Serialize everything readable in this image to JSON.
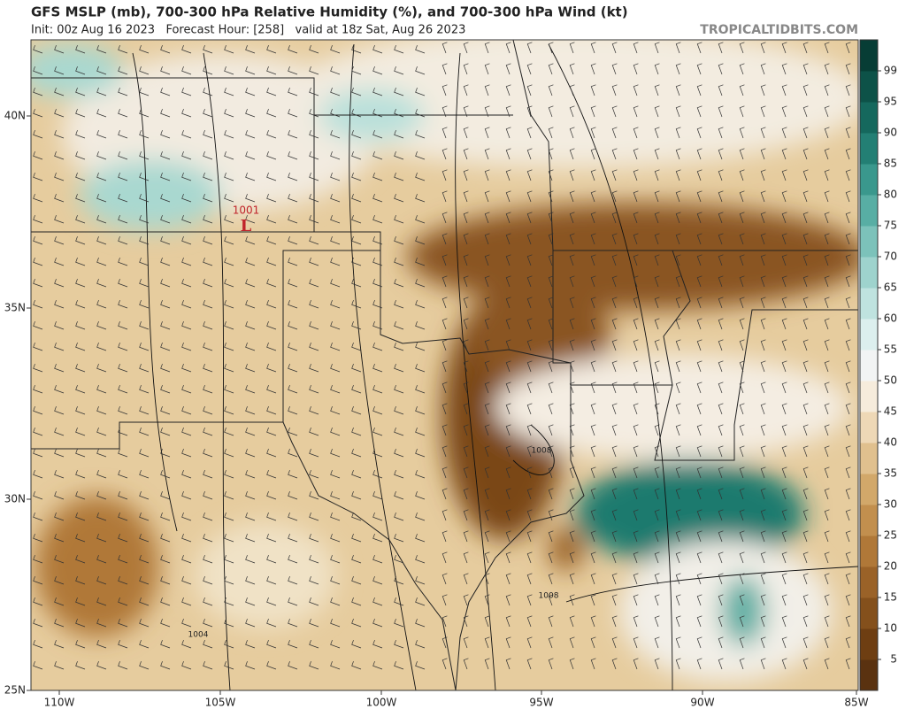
{
  "header": {
    "title": "GFS MSLP (mb), 700-300 hPa Relative Humidity (%), and 700-300 hPa Wind (kt)",
    "subtitle": "Init: 00z Aug 16 2023   Forecast Hour: [258]   valid at 18z Sat, Aug 26 2023",
    "site": "TROPICALTIDBITS.COM"
  },
  "map": {
    "lat_labels": [
      "40N",
      "35N",
      "30N",
      "25N"
    ],
    "lon_labels": [
      "110W",
      "105W",
      "100W",
      "95W",
      "90W",
      "85W"
    ],
    "low": {
      "pressure": "1001",
      "symbol": "L"
    },
    "isobar_labels": [
      "1008",
      "1008",
      "1004"
    ]
  },
  "colorbar": {
    "ticks": [
      5,
      10,
      15,
      20,
      25,
      30,
      35,
      40,
      45,
      50,
      55,
      60,
      65,
      70,
      75,
      80,
      85,
      90,
      95,
      99
    ],
    "colors": [
      "#5a3210",
      "#6e3e12",
      "#84501c",
      "#9a6228",
      "#b07838",
      "#c28f4e",
      "#d2a86a",
      "#e0c08e",
      "#eed8b6",
      "#f6ecdc",
      "#f2f4f4",
      "#dcefee",
      "#bfe3df",
      "#9ed3cd",
      "#7cc2ba",
      "#58aea4",
      "#3a988d",
      "#237f74",
      "#15685d",
      "#0d5248",
      "#073d35"
    ]
  }
}
